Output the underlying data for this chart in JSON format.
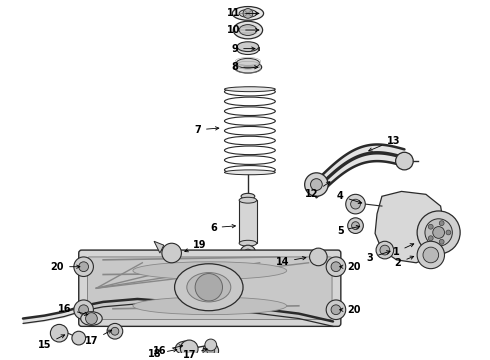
{
  "bg_color": "#ffffff",
  "line_color": "#2a2a2a",
  "label_fontsize": 7.0,
  "fig_width": 4.9,
  "fig_height": 3.6,
  "dpi": 100
}
